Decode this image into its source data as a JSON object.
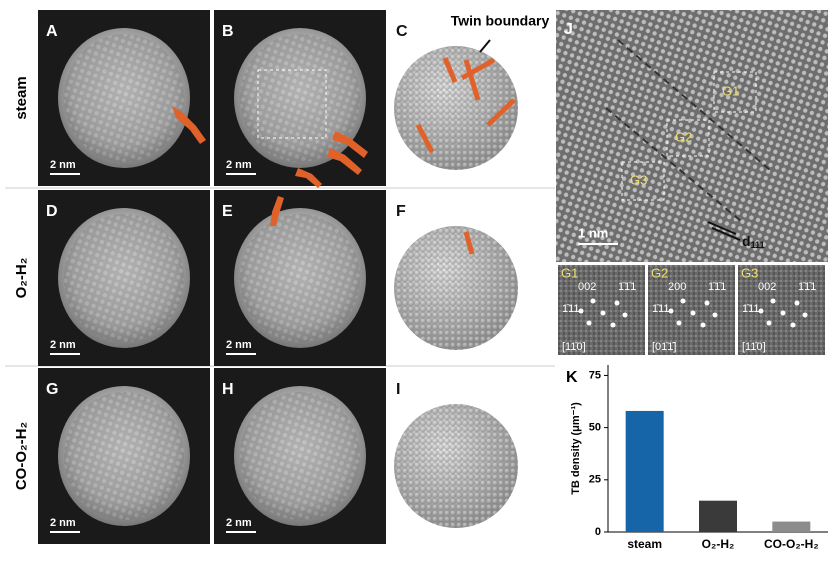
{
  "row_labels": [
    "steam",
    "O₂-H₂",
    "CO-O₂-H₂"
  ],
  "panels": [
    {
      "label": "A",
      "scale": "2 nm"
    },
    {
      "label": "B",
      "scale": "2 nm"
    },
    {
      "label": "C"
    },
    {
      "label": "D",
      "scale": "2 nm"
    },
    {
      "label": "E",
      "scale": "2 nm"
    },
    {
      "label": "F"
    },
    {
      "label": "G",
      "scale": "2 nm"
    },
    {
      "label": "H",
      "scale": "2 nm"
    },
    {
      "label": "I"
    }
  ],
  "twin_boundary": "Twin boundary",
  "panel_j": {
    "label": "J",
    "regions": [
      "G1",
      "G2",
      "G3"
    ],
    "scale": "1 nm",
    "d_main": "d",
    "d_sub": "111"
  },
  "fft": [
    {
      "label": "G1",
      "spots": [
        "002",
        "1̄1̄1",
        "1̄11"
      ],
      "zone": "[11̄0]"
    },
    {
      "label": "G2",
      "spots": [
        "200",
        "1̄1̄1",
        "1̄11"
      ],
      "zone": "[01̄1̄]"
    },
    {
      "label": "G3",
      "spots": [
        "002",
        "1̄1̄1",
        "1̄11"
      ],
      "zone": "[11̄0]"
    }
  ],
  "chart_data": {
    "type": "bar",
    "title": "K",
    "y_label": "TB density (μm⁻¹)",
    "categories": [
      "steam",
      "O₂-H₂",
      "CO-O₂-H₂"
    ],
    "values": [
      58,
      15,
      5
    ],
    "colors": [
      "#1565a8",
      "#3a3a3a",
      "#8c8c8c"
    ],
    "ylim": [
      0,
      80
    ],
    "yticks": [
      0,
      25,
      50,
      75
    ]
  }
}
